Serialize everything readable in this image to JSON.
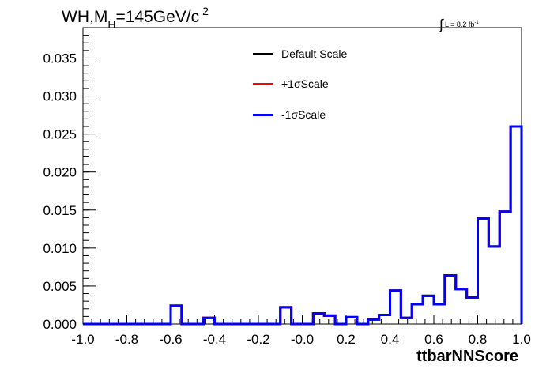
{
  "header": {
    "title_main": "WH,M",
    "title_sub": "H",
    "title_rest": "=145GeV/c",
    "title_sup": "2",
    "lumi_int": "∫",
    "lumi_text": "L = 8.2 fb",
    "lumi_sup": "-1"
  },
  "chart_data": {
    "type": "line",
    "title": "WH,MH=145GeV/c2",
    "xlabel": "ttbarNNScore",
    "ylabel": "",
    "xlim": [
      -1.0,
      1.0
    ],
    "ylim": [
      0.0,
      0.039
    ],
    "grid": false,
    "legend_placement": "top-center",
    "x_ticks": [
      "-1.0",
      "-0.8",
      "-0.6",
      "-0.4",
      "-0.2",
      "-0.0",
      "0.2",
      "0.4",
      "0.6",
      "0.8",
      "1.0"
    ],
    "y_ticks": [
      "0.000",
      "0.005",
      "0.010",
      "0.015",
      "0.020",
      "0.025",
      "0.030",
      "0.035"
    ],
    "bin_edges": [
      -1.0,
      -0.95,
      -0.9,
      -0.85,
      -0.8,
      -0.75,
      -0.7,
      -0.65,
      -0.6,
      -0.55,
      -0.5,
      -0.45,
      -0.4,
      -0.35,
      -0.3,
      -0.25,
      -0.2,
      -0.15,
      -0.1,
      -0.05,
      0.0,
      0.05,
      0.1,
      0.15,
      0.2,
      0.25,
      0.3,
      0.35,
      0.4,
      0.45,
      0.5,
      0.55,
      0.6,
      0.65,
      0.7,
      0.75,
      0.8,
      0.85,
      0.9,
      0.95,
      1.0
    ],
    "series": [
      {
        "name": "Default Scale",
        "color": "#000000",
        "values": [
          0,
          0,
          0,
          0,
          0,
          0,
          0,
          0,
          0.0024,
          0,
          0,
          0.0008,
          0,
          0,
          0,
          0,
          0,
          0,
          0.0022,
          0,
          0,
          0.0014,
          0.0011,
          0,
          0.0009,
          0,
          0.0006,
          0.0012,
          0.0044,
          0.0008,
          0.0026,
          0.0037,
          0.0026,
          0.0064,
          0.0046,
          0.0035,
          0.0139,
          0.0102,
          0.0148,
          0.026
        ]
      },
      {
        "name": "+1σScale",
        "color": "#ff0000",
        "values": [
          0,
          0,
          0,
          0,
          0,
          0,
          0,
          0,
          0.0024,
          0,
          0,
          0.0008,
          0,
          0,
          0,
          0,
          0,
          0,
          0.0022,
          0,
          0,
          0.0014,
          0.0011,
          0,
          0.0009,
          0,
          0.0006,
          0.0012,
          0.0044,
          0.0008,
          0.0026,
          0.0037,
          0.0026,
          0.0064,
          0.0046,
          0.0035,
          0.0139,
          0.0102,
          0.0148,
          0.026
        ]
      },
      {
        "name": "-1σScale",
        "color": "#0000ff",
        "values": [
          0,
          0,
          0,
          0,
          0,
          0,
          0,
          0,
          0.0024,
          0,
          0,
          0.0008,
          0,
          0,
          0,
          0,
          0,
          0,
          0.0022,
          0,
          0,
          0.0014,
          0.0011,
          0,
          0.0009,
          0,
          0.0006,
          0.0012,
          0.0044,
          0.0008,
          0.0026,
          0.0037,
          0.0026,
          0.0064,
          0.0046,
          0.0035,
          0.0139,
          0.0102,
          0.0148,
          0.026
        ]
      }
    ]
  }
}
